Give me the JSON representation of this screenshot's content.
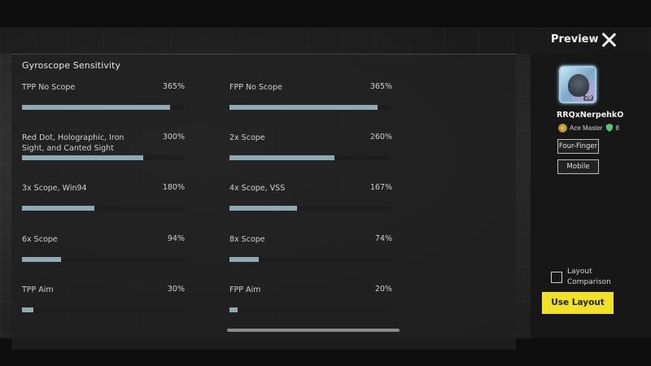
{
  "panel": {
    "title": "Gyroscope Sensitivity",
    "settings": [
      {
        "label": "TPP No Scope",
        "value": "365%",
        "fill": 0.92
      },
      {
        "label": "FPP No Scope",
        "value": "365%",
        "fill": 0.92
      },
      {
        "label": "Red Dot, Holographic, Iron Sight, and Canted Sight",
        "value": "300%",
        "fill": 0.75
      },
      {
        "label": "2x Scope",
        "value": "260%",
        "fill": 0.65
      },
      {
        "label": "3x Scope, Win94",
        "value": "180%",
        "fill": 0.45
      },
      {
        "label": "4x Scope, VSS",
        "value": "167%",
        "fill": 0.42
      },
      {
        "label": "6x Scope",
        "value": "94%",
        "fill": 0.24
      },
      {
        "label": "8x Scope",
        "value": "74%",
        "fill": 0.18
      },
      {
        "label": "TPP Aim",
        "value": "30%",
        "fill": 0.07
      },
      {
        "label": "FPP Aim",
        "value": "20%",
        "fill": 0.05
      }
    ]
  },
  "preview": {
    "title": "Preview",
    "close_icon": "close-icon"
  },
  "player": {
    "level": "29",
    "name": "RRQxNerpehkO",
    "tier": "Ace Master",
    "shield_count": "8",
    "tags": [
      "Four-Finger",
      "Mobile"
    ]
  },
  "actions": {
    "comparison_label": "Layout Comparison",
    "use_layout_label": "Use Layout"
  },
  "colors": {
    "slider_fill": "#8fa9b5",
    "accent_button": "#f2e02a"
  }
}
